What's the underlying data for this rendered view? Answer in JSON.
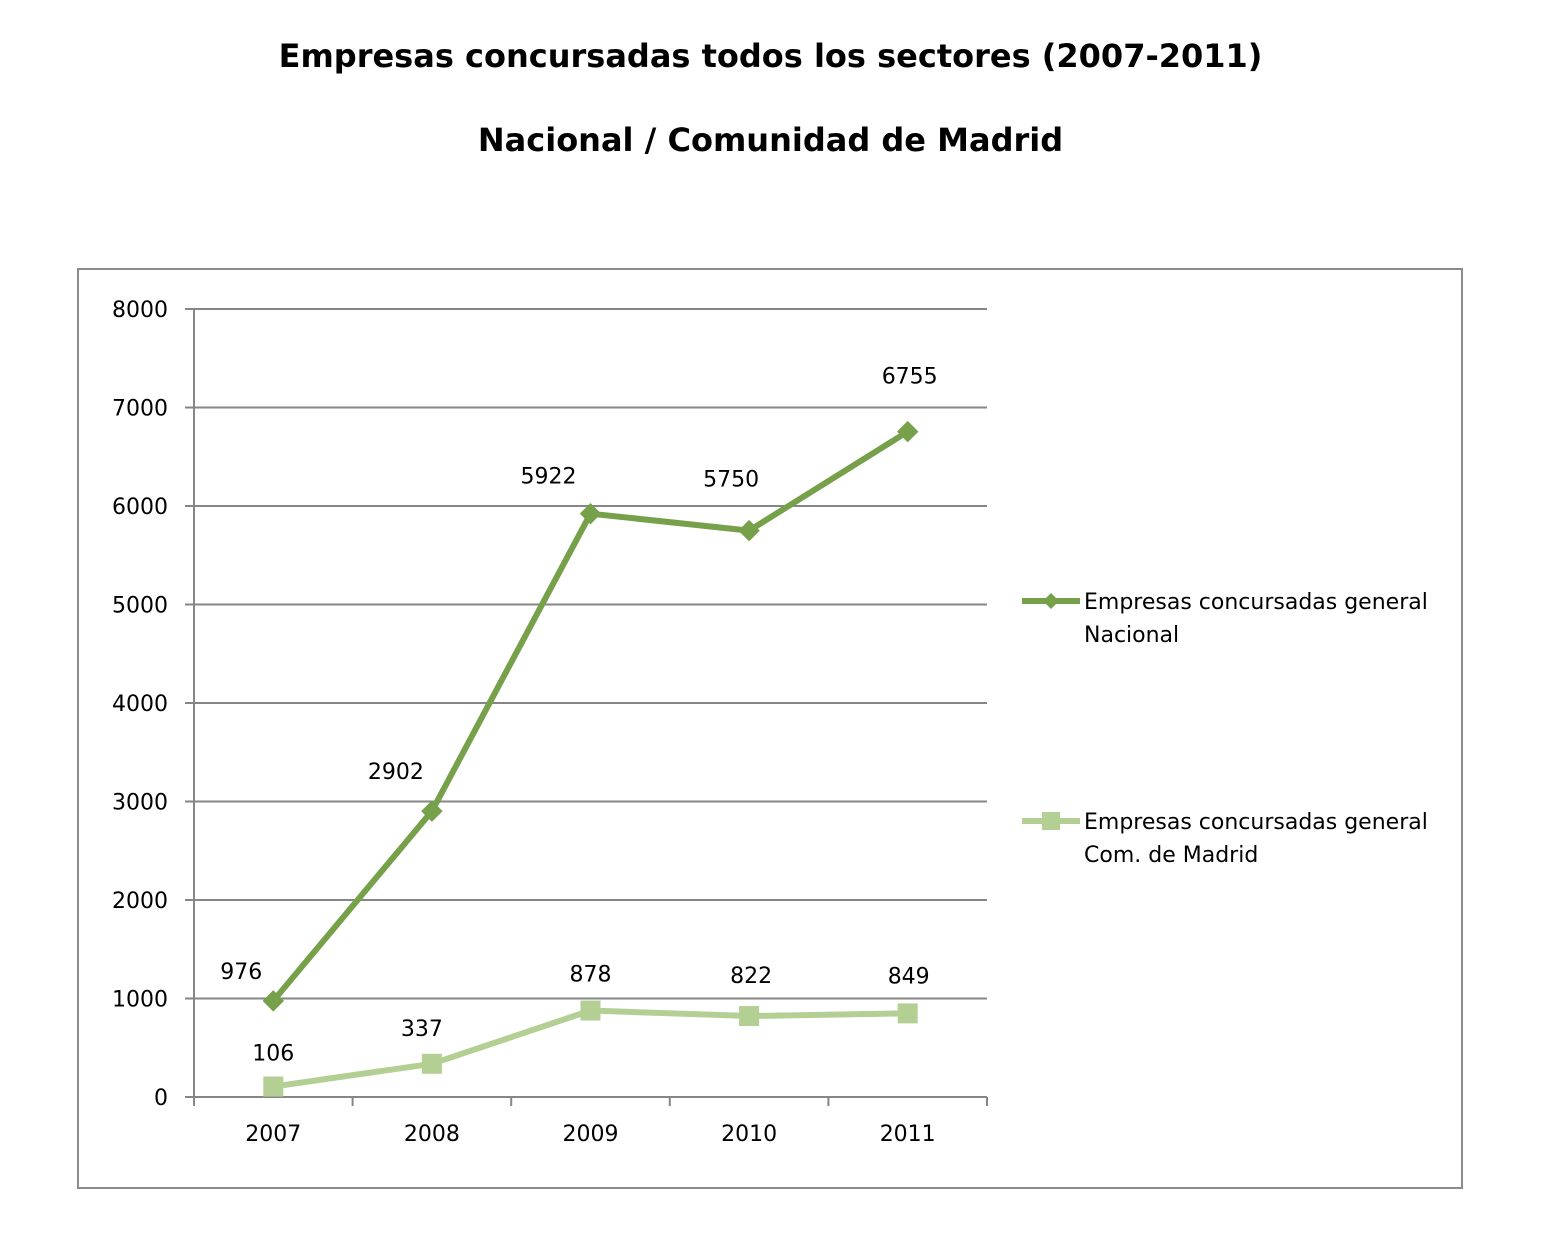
{
  "chart_data": {
    "type": "line",
    "title": "Empresas concursadas todos los sectores (2007-2011)",
    "subtitle": "Nacional / Comunidad de Madrid",
    "categories": [
      "2007",
      "2008",
      "2009",
      "2010",
      "2011"
    ],
    "ylim": [
      0,
      8000
    ],
    "yticks": [
      0,
      1000,
      2000,
      3000,
      4000,
      5000,
      6000,
      7000,
      8000
    ],
    "grid": true,
    "legend_position": "right",
    "series": [
      {
        "name_lines": [
          "Empresas concursadas general",
          "Nacional"
        ],
        "values": [
          976,
          2902,
          5922,
          5750,
          6755
        ],
        "labels": [
          "976",
          "2902",
          "5922",
          "5750",
          "6755"
        ],
        "color": "#77a04a",
        "marker": "diamond"
      },
      {
        "name_lines": [
          "Empresas concursadas general",
          "Com. de Madrid"
        ],
        "values": [
          106,
          337,
          878,
          822,
          849
        ],
        "labels": [
          "106",
          "337",
          "878",
          "822",
          "849"
        ],
        "color": "#b4cf94",
        "marker": "square"
      }
    ]
  }
}
